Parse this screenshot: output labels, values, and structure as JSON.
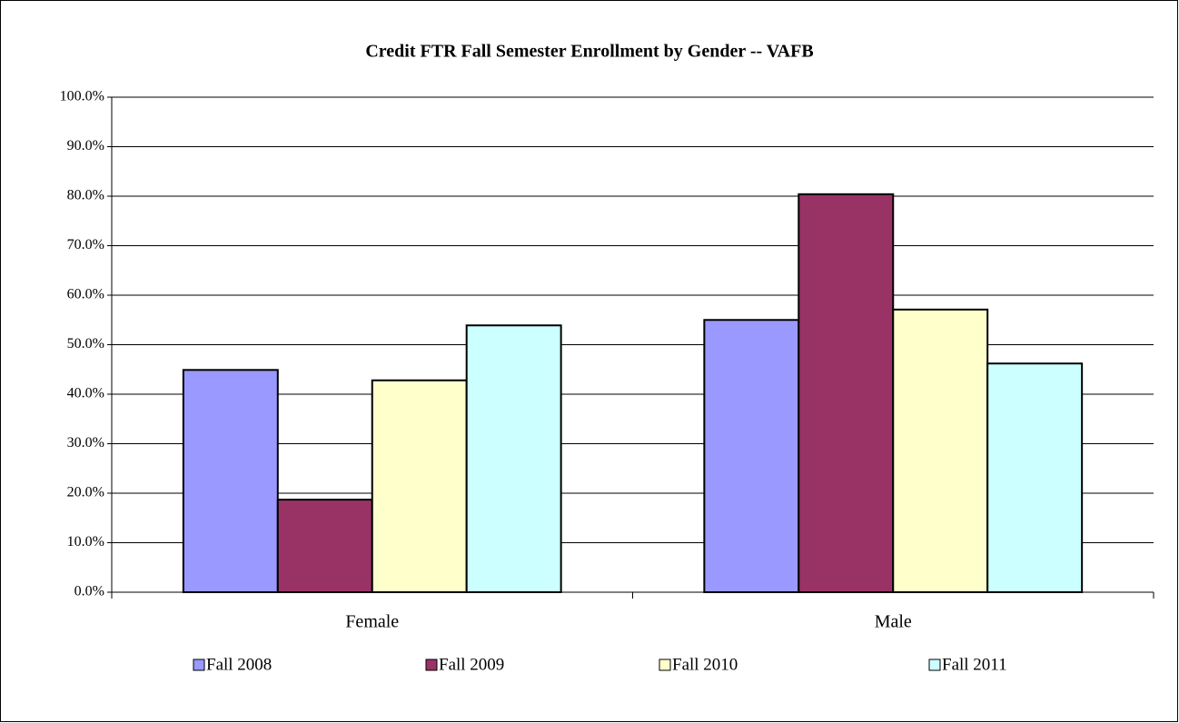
{
  "chart_data": {
    "type": "bar",
    "title": "Credit FTR Fall Semester Enrollment by Gender -- VAFB",
    "categories": [
      "Female",
      "Male"
    ],
    "series": [
      {
        "name": "Fall 2008",
        "color": "#9999ff",
        "values": [
          44.9,
          55.0
        ]
      },
      {
        "name": "Fall 2009",
        "color": "#993366",
        "values": [
          18.7,
          80.4
        ]
      },
      {
        "name": "Fall 2010",
        "color": "#ffffcc",
        "values": [
          42.8,
          57.1
        ]
      },
      {
        "name": "Fall 2011",
        "color": "#ccffff",
        "values": [
          53.9,
          46.2
        ]
      }
    ],
    "ylim": [
      0,
      100
    ],
    "yticks": [
      {
        "value": 0,
        "label": "0.0%"
      },
      {
        "value": 10,
        "label": "10.0%"
      },
      {
        "value": 20,
        "label": "20.0%"
      },
      {
        "value": 30,
        "label": "30.0%"
      },
      {
        "value": 40,
        "label": "40.0%"
      },
      {
        "value": 50,
        "label": "50.0%"
      },
      {
        "value": 60,
        "label": "60.0%"
      },
      {
        "value": 70,
        "label": "70.0%"
      },
      {
        "value": 80,
        "label": "80.0%"
      },
      {
        "value": 90,
        "label": "90.0%"
      },
      {
        "value": 100,
        "label": "100.0%"
      }
    ],
    "grid": true,
    "legend": "bottom"
  }
}
